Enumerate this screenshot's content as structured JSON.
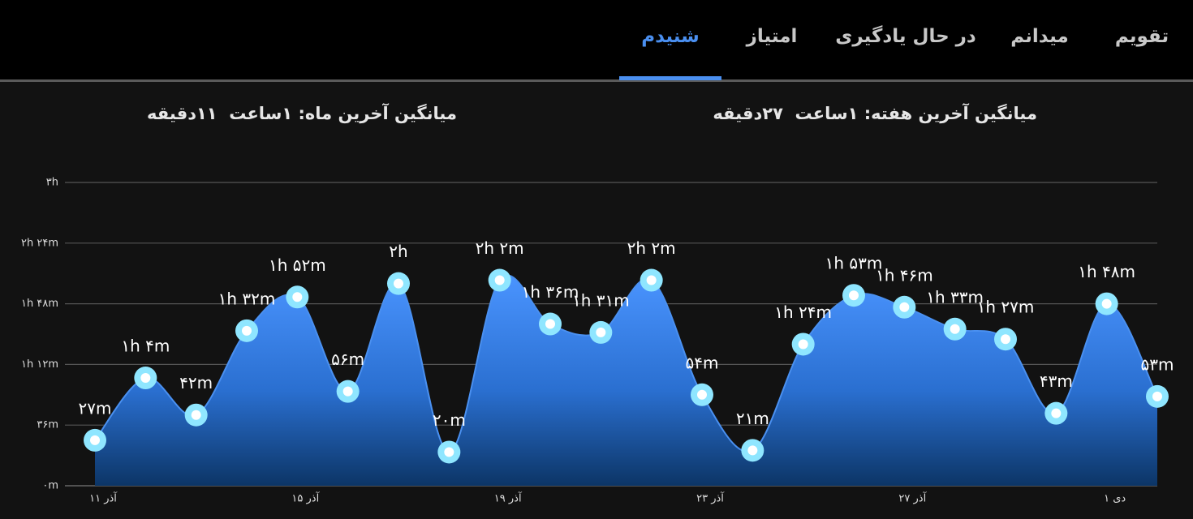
{
  "tabs": [
    {
      "label": "تقویم",
      "active": false
    },
    {
      "label": "میدانم",
      "active": false
    },
    {
      "label": "در حال یادگیری",
      "active": false
    },
    {
      "label": "امتیاز",
      "active": false
    },
    {
      "label": "شنیدم",
      "active": true
    }
  ],
  "summary": {
    "week": "میانگین آخرین هفته: ۱ساعت  ۲۷دقیقه",
    "month": "میانگین آخرین ماه: ۱ساعت  ۱۱دقیقه"
  },
  "chart_data": {
    "type": "area",
    "categories": [
      "۱۱ آذر",
      null,
      null,
      null,
      "۱۵ آذر",
      null,
      null,
      null,
      "۱۹ آذر",
      null,
      null,
      null,
      "۲۳ آذر",
      null,
      null,
      null,
      "۲۷ آذر",
      null,
      null,
      null,
      "۱ دی",
      null
    ],
    "values": [
      27,
      64,
      42,
      92,
      112,
      56,
      120,
      20,
      122,
      96,
      91,
      122,
      54,
      21,
      84,
      113,
      106,
      93,
      87,
      43,
      108,
      53
    ],
    "value_labels": [
      "۲۷m",
      "۱h ۴m",
      "۴۲m",
      "۱h ۳۲m",
      "۱h ۵۲m",
      "۵۶m",
      "۲h",
      "۲۰m",
      "۲h ۲m",
      "۱h ۳۶m",
      "۱h ۳۱m",
      "۲h ۲m",
      "۵۴m",
      "۲۱m",
      "۱h ۲۴m",
      "۱h ۵۳m",
      "۱h ۴۶m",
      "۱h ۳۳m",
      "۱h ۲۷m",
      "۴۳m",
      "۱h ۴۸m",
      "۵۳m"
    ],
    "color": "#4a90f0",
    "ylim": [
      0,
      180
    ],
    "yticks": [
      {
        "value": 0,
        "label": "۰m"
      },
      {
        "value": 36,
        "label": "۳۶m"
      },
      {
        "value": 72,
        "label": "۱h ۱۲m"
      },
      {
        "value": 108,
        "label": "۱h ۴۸m"
      },
      {
        "value": 144,
        "label": "۲h ۲۴m"
      },
      {
        "value": 180,
        "label": "۳h"
      }
    ],
    "grid": true
  }
}
